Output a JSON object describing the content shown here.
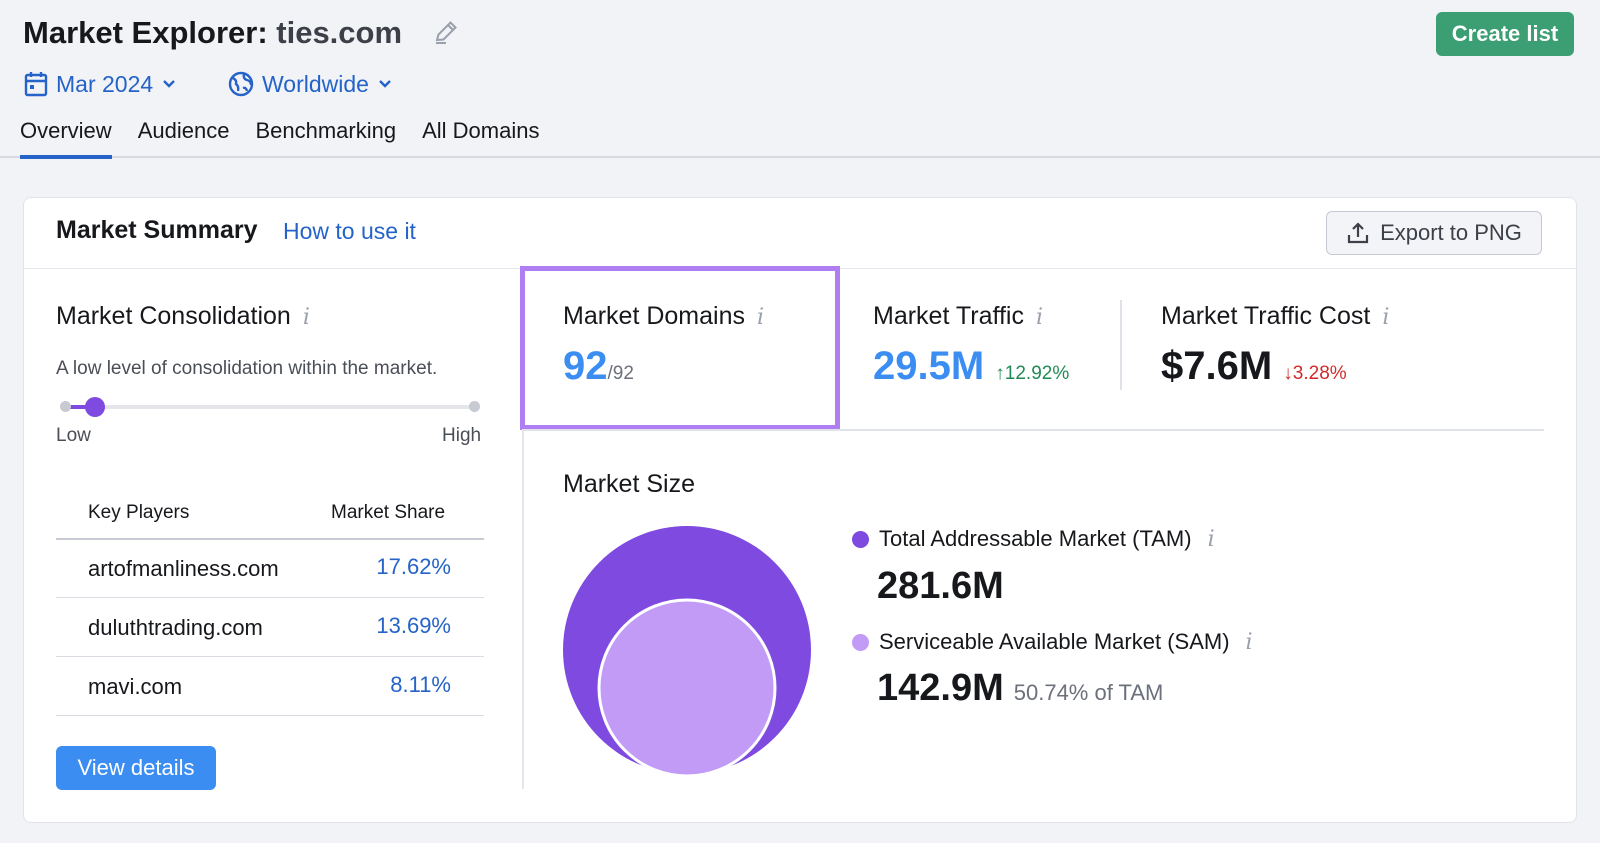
{
  "header": {
    "title_prefix": "Market Explorer:",
    "title_domain": "ties.com",
    "create_button": "Create list",
    "date_filter": "Mar 2024",
    "region_filter": "Worldwide",
    "tabs": [
      "Overview",
      "Audience",
      "Benchmarking",
      "All Domains"
    ],
    "active_tab": "Overview"
  },
  "summary": {
    "title": "Market Summary",
    "how_to_link": "How to use it",
    "export_button": "Export to PNG"
  },
  "consolidation": {
    "title": "Market Consolidation",
    "info": "i",
    "description": "A low level of consolidation within the market.",
    "low_label": "Low",
    "high_label": "High",
    "level": 0.07,
    "table_headers": {
      "players": "Key Players",
      "share": "Market Share"
    },
    "players": [
      {
        "domain": "artofmanliness.com",
        "share": "17.62%"
      },
      {
        "domain": "duluthtrading.com",
        "share": "13.69%"
      },
      {
        "domain": "mavi.com",
        "share": "8.11%"
      }
    ],
    "view_button": "View details"
  },
  "metrics": {
    "domains": {
      "label": "Market Domains",
      "value": "92",
      "total": "/92"
    },
    "traffic": {
      "label": "Market Traffic",
      "value": "29.5M",
      "delta": "12.92%"
    },
    "cost": {
      "label": "Market Traffic Cost",
      "value": "$7.6M",
      "delta": "3.28%"
    }
  },
  "market_size": {
    "title": "Market Size",
    "tam": {
      "label": "Total Addressable Market (TAM)",
      "value": "281.6M",
      "color": "#7e4ae0"
    },
    "sam": {
      "label": "Serviceable Available Market (SAM)",
      "value": "142.9M",
      "note": "50.74% of TAM",
      "color": "#c29bf7"
    }
  },
  "colors": {
    "accent_blue": "#2563c8",
    "green_button": "#3c9f74",
    "highlight": "#b07ef3"
  }
}
